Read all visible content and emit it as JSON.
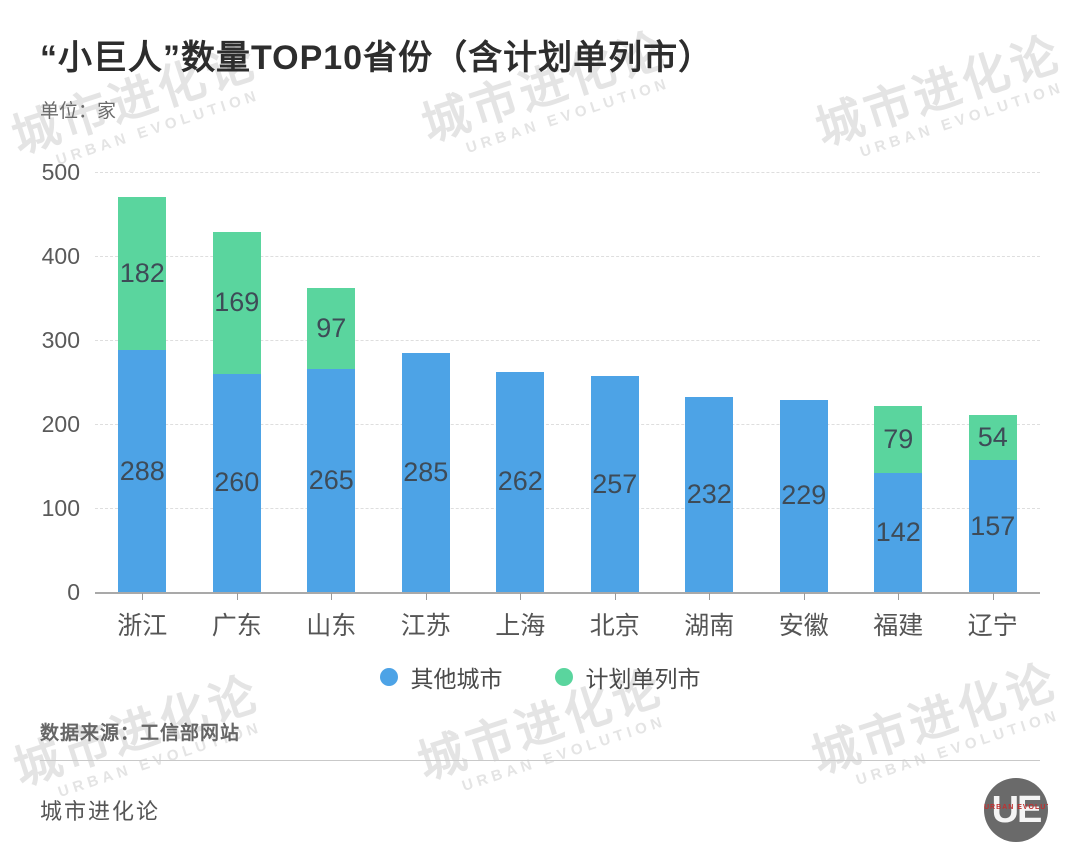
{
  "title": "“小巨人”数量TOP10省份（含计划单列市）",
  "unit_label": "单位：家",
  "chart_data": {
    "type": "bar",
    "stacked": true,
    "title": "“小巨人”数量TOP10省份（含计划单列市）",
    "ylabel": "单位：家",
    "xlabel": "",
    "categories": [
      "浙江",
      "广东",
      "山东",
      "江苏",
      "上海",
      "北京",
      "湖南",
      "安徽",
      "福建",
      "辽宁"
    ],
    "series": [
      {
        "name": "其他城市",
        "color": "#4DA3E6",
        "values": [
          288,
          260,
          265,
          285,
          262,
          257,
          232,
          229,
          142,
          157
        ]
      },
      {
        "name": "计划单列市",
        "color": "#5AD59E",
        "values": [
          182,
          169,
          97,
          0,
          0,
          0,
          0,
          0,
          79,
          54
        ]
      }
    ],
    "totals": [
      470,
      429,
      362,
      285,
      262,
      257,
      232,
      229,
      221,
      211
    ],
    "ylim": [
      0,
      500
    ],
    "yticks": [
      0,
      100,
      200,
      300,
      400,
      500
    ],
    "grid": "horizontal-dashed",
    "legend_position": "bottom",
    "value_labels": "centered-in-segment"
  },
  "legend": {
    "items": [
      {
        "label": "其他城市",
        "color": "#4DA3E6"
      },
      {
        "label": "计划单列市",
        "color": "#5AD59E"
      }
    ]
  },
  "source": "数据来源：工信部网站",
  "footer": {
    "brand": "城市进化论"
  },
  "watermark": {
    "text": "城市进化论",
    "subtext": "URBAN EVOLUTION"
  },
  "logo": {
    "text": "UE",
    "subtext": "URBAN EVOLUTION"
  },
  "colors": {
    "bar_blue": "#4DA3E6",
    "bar_green": "#5AD59E",
    "value_label": "#3e4b57",
    "axis_label": "#555555",
    "gridline": "#dedede",
    "watermark": "#e4e4e4",
    "logo_circle": "#6a6a6a",
    "logo_accent": "#c22f2f"
  }
}
